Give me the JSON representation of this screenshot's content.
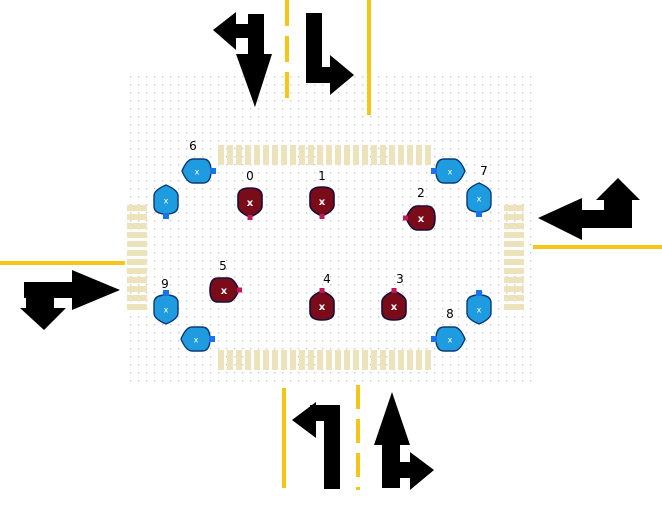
{
  "colors": {
    "background": "#ffffff",
    "grid_dot": "#c8c8c8",
    "lane_line": "#f5c518",
    "crosswalk": "#ece2bc",
    "arrow": "#000000",
    "vehicle_fill": "#7a0c1a",
    "vehicle_stroke": "#1a0c3a",
    "vehicle_marker": "#c2185b",
    "pedestrian_fill": "#1f9be0",
    "pedestrian_stroke": "#0b3a75",
    "pedestrian_marker": "#1a73e8"
  },
  "vehicles": [
    {
      "id": "0",
      "label": "0",
      "mark": "x",
      "heading": "down"
    },
    {
      "id": "1",
      "label": "1",
      "mark": "x",
      "heading": "down"
    },
    {
      "id": "2",
      "label": "2",
      "mark": "x",
      "heading": "left"
    },
    {
      "id": "3",
      "label": "3",
      "mark": "x",
      "heading": "up"
    },
    {
      "id": "4",
      "label": "4",
      "mark": "x",
      "heading": "up"
    },
    {
      "id": "5",
      "label": "5",
      "mark": "x",
      "heading": "right"
    }
  ],
  "pedestrians": [
    {
      "id": "6",
      "label": "6",
      "mark": "x"
    },
    {
      "id": "7",
      "label": "7",
      "mark": "x"
    },
    {
      "id": "8",
      "label": "8",
      "mark": "x"
    },
    {
      "id": "9",
      "label": "9",
      "mark": "x"
    },
    {
      "id": "6b",
      "label": "",
      "mark": "x"
    },
    {
      "id": "7b",
      "label": "",
      "mark": "x"
    },
    {
      "id": "8b",
      "label": "",
      "mark": "x"
    },
    {
      "id": "9b",
      "label": "",
      "mark": "x"
    }
  ],
  "approach_arrows": [
    {
      "id": "north-inbound",
      "icon": "left-straight-turn-arrow-icon"
    },
    {
      "id": "north-outbound",
      "icon": "down-right-turn-arrow-icon"
    },
    {
      "id": "east",
      "icon": "left-straight-up-turn-arrow-icon"
    },
    {
      "id": "west",
      "icon": "right-straight-down-turn-arrow-icon"
    },
    {
      "id": "south-left",
      "icon": "up-left-turn-arrow-icon"
    },
    {
      "id": "south-right",
      "icon": "up-straight-right-turn-arrow-icon"
    }
  ]
}
